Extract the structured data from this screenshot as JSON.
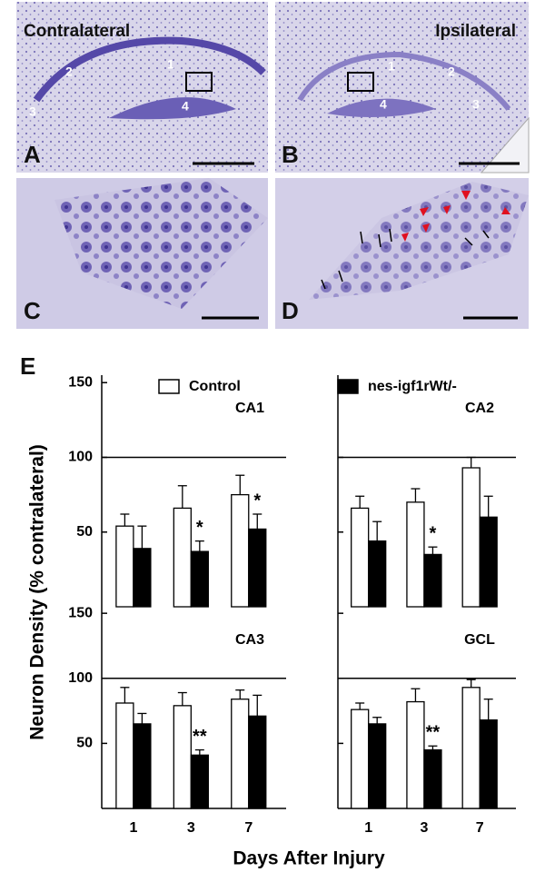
{
  "panels": [
    {
      "letter": "A",
      "title": "Contralateral",
      "regions": [
        "1",
        "2",
        "3",
        "4"
      ]
    },
    {
      "letter": "B",
      "title": "Ipsilateral",
      "regions": [
        "1",
        "2",
        "3",
        "4"
      ]
    },
    {
      "letter": "C"
    },
    {
      "letter": "D"
    }
  ],
  "figure_e": {
    "label": "E",
    "ylabel": "Neuron Density (% contralateral)",
    "xlabel": "Days After Injury"
  },
  "chart_data": [
    {
      "type": "bar",
      "title": "CA1",
      "categories": [
        null,
        null,
        null
      ],
      "series": [
        {
          "name": "Control",
          "color": "#ffffff",
          "values": [
            54,
            66,
            75
          ],
          "errors": [
            8,
            15,
            13
          ]
        },
        {
          "name": "nes-igf1rWt/-",
          "color": "#000000",
          "values": [
            39,
            37,
            52
          ],
          "errors": [
            15,
            7,
            10
          ]
        }
      ],
      "significance": [
        null,
        "*",
        "*"
      ],
      "ylim": [
        0,
        155
      ],
      "yticks": [
        50,
        100,
        150
      ],
      "ytick_labels": true,
      "refline": 100
    },
    {
      "type": "bar",
      "title": "CA2",
      "categories": [
        null,
        null,
        null
      ],
      "series": [
        {
          "color": "#ffffff",
          "values": [
            66,
            70,
            93
          ],
          "errors": [
            8,
            9,
            7
          ]
        },
        {
          "color": "#000000",
          "values": [
            44,
            35,
            60
          ],
          "errors": [
            13,
            5,
            14
          ]
        }
      ],
      "significance": [
        null,
        "*",
        null
      ],
      "ylim": [
        0,
        155
      ],
      "yticks": [
        50,
        100,
        150
      ],
      "ytick_labels": false,
      "refline": 100
    },
    {
      "type": "bar",
      "title": "CA3",
      "categories": [
        "1",
        "3",
        "7"
      ],
      "series": [
        {
          "color": "#ffffff",
          "values": [
            81,
            79,
            84
          ],
          "errors": [
            12,
            10,
            7
          ]
        },
        {
          "color": "#000000",
          "values": [
            65,
            41,
            71
          ],
          "errors": [
            8,
            4,
            16
          ]
        }
      ],
      "significance": [
        null,
        "**",
        null
      ],
      "ylim": [
        0,
        155
      ],
      "yticks": [
        50,
        100,
        150
      ],
      "ytick_labels": true,
      "refline": 100
    },
    {
      "type": "bar",
      "title": "GCL",
      "categories": [
        "1",
        "3",
        "7"
      ],
      "series": [
        {
          "color": "#ffffff",
          "values": [
            76,
            82,
            93
          ],
          "errors": [
            5,
            10,
            6
          ]
        },
        {
          "color": "#000000",
          "values": [
            65,
            45,
            68
          ],
          "errors": [
            5,
            3,
            16
          ]
        }
      ],
      "significance": [
        null,
        "**",
        null
      ],
      "ylim": [
        0,
        155
      ],
      "yticks": [
        50,
        100,
        150
      ],
      "ytick_labels": false,
      "refline": 100
    }
  ]
}
